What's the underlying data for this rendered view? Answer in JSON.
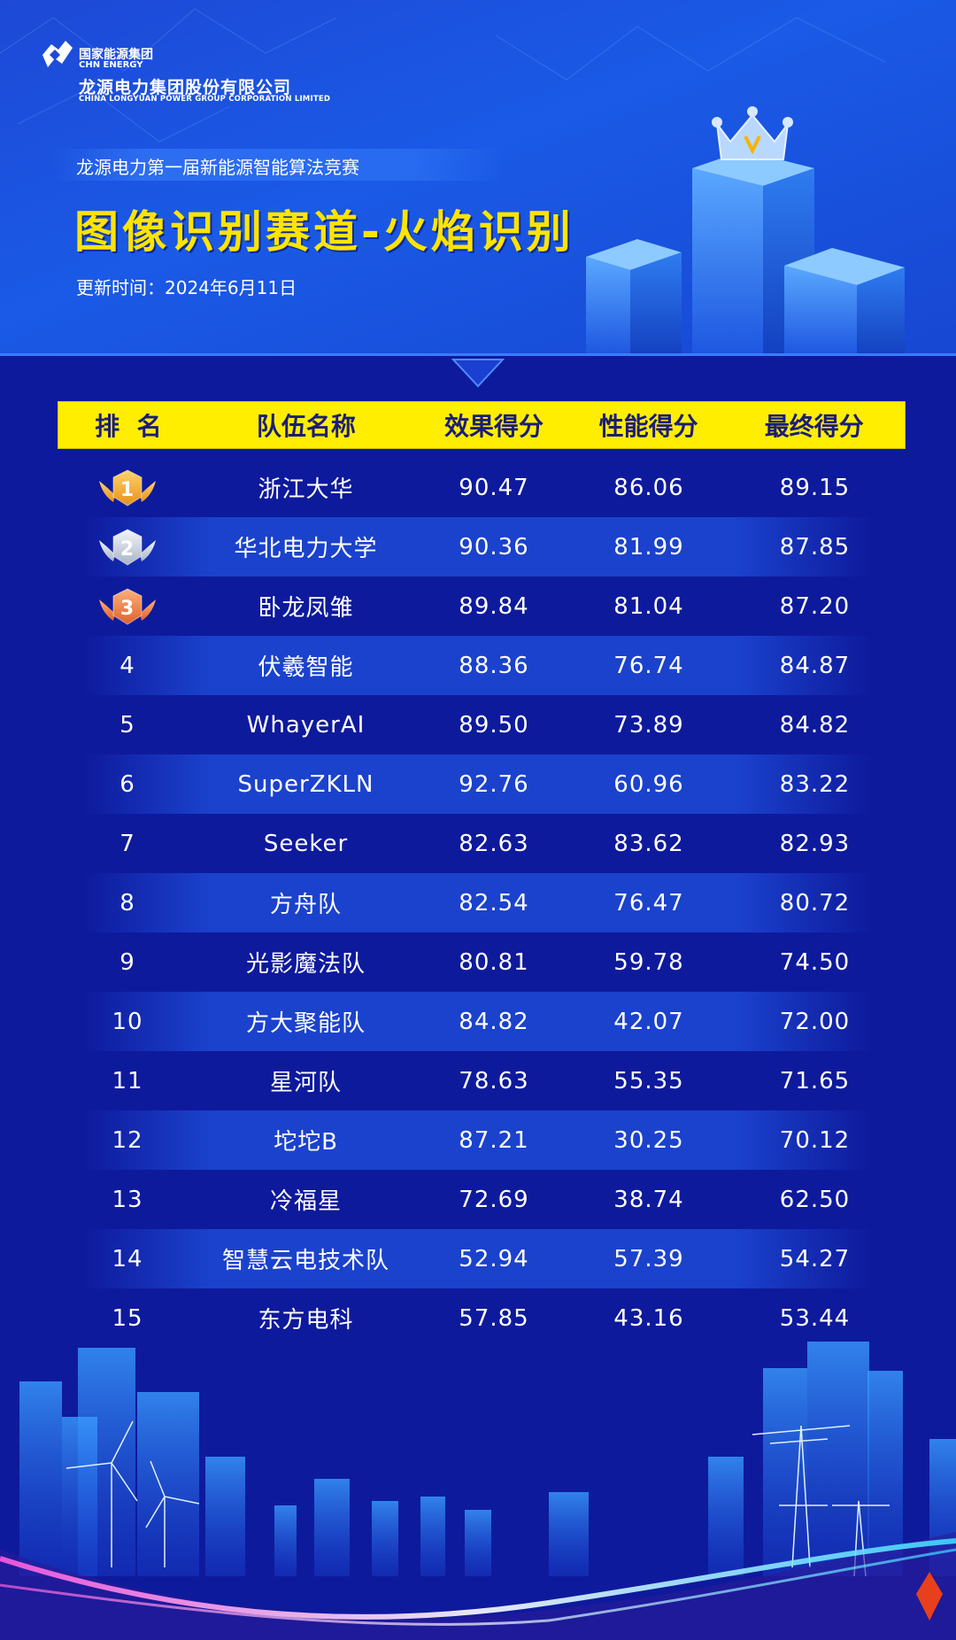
{
  "header": {
    "logo_cn": "国家能源集团",
    "logo_en": "CHN ENERGY",
    "company_cn": "龙源电力集团股份有限公司",
    "company_en": "CHINA LONGYUAN POWER GROUP CORPORATION LIMITED",
    "subtitle": "龙源电力第一届新能源智能算法竞赛",
    "title": "图像识别赛道-火焰识别",
    "update_time": "更新时间：2024年6月11日"
  },
  "colors": {
    "accent": "#ffee00",
    "background": "#0e1a9c",
    "header_top": "#1d49d6",
    "gold": "#f5a623",
    "silver": "#c9d2de",
    "bronze": "#ef7b3c"
  },
  "table": {
    "columns": [
      "排  名",
      "队伍名称",
      "效果得分",
      "性能得分",
      "最终得分"
    ],
    "rows": [
      {
        "rank": "1",
        "team": "浙江大华",
        "effect": "90.47",
        "perf": "86.06",
        "final": "89.15",
        "medal": "gold"
      },
      {
        "rank": "2",
        "team": "华北电力大学",
        "effect": "90.36",
        "perf": "81.99",
        "final": "87.85",
        "medal": "silver"
      },
      {
        "rank": "3",
        "team": "卧龙凤雏",
        "effect": "89.84",
        "perf": "81.04",
        "final": "87.20",
        "medal": "bronze"
      },
      {
        "rank": "4",
        "team": "伏羲智能",
        "effect": "88.36",
        "perf": "76.74",
        "final": "84.87"
      },
      {
        "rank": "5",
        "team": "WhayerAI",
        "effect": "89.50",
        "perf": "73.89",
        "final": "84.82"
      },
      {
        "rank": "6",
        "team": "SuperZKLN",
        "effect": "92.76",
        "perf": "60.96",
        "final": "83.22"
      },
      {
        "rank": "7",
        "team": "Seeker",
        "effect": "82.63",
        "perf": "83.62",
        "final": "82.93"
      },
      {
        "rank": "8",
        "team": "方舟队",
        "effect": "82.54",
        "perf": "76.47",
        "final": "80.72"
      },
      {
        "rank": "9",
        "team": "光影魔法队",
        "effect": "80.81",
        "perf": "59.78",
        "final": "74.50"
      },
      {
        "rank": "10",
        "team": "方大聚能队",
        "effect": "84.82",
        "perf": "42.07",
        "final": "72.00"
      },
      {
        "rank": "11",
        "team": "星河队",
        "effect": "78.63",
        "perf": "55.35",
        "final": "71.65"
      },
      {
        "rank": "12",
        "team": "坨坨B",
        "effect": "87.21",
        "perf": "30.25",
        "final": "70.12"
      },
      {
        "rank": "13",
        "team": "冷福星",
        "effect": "72.69",
        "perf": "38.74",
        "final": "62.50"
      },
      {
        "rank": "14",
        "team": "智慧云电技术队",
        "effect": "52.94",
        "perf": "57.39",
        "final": "54.27"
      },
      {
        "rank": "15",
        "team": "东方电科",
        "effect": "57.85",
        "perf": "43.16",
        "final": "53.44"
      }
    ]
  }
}
